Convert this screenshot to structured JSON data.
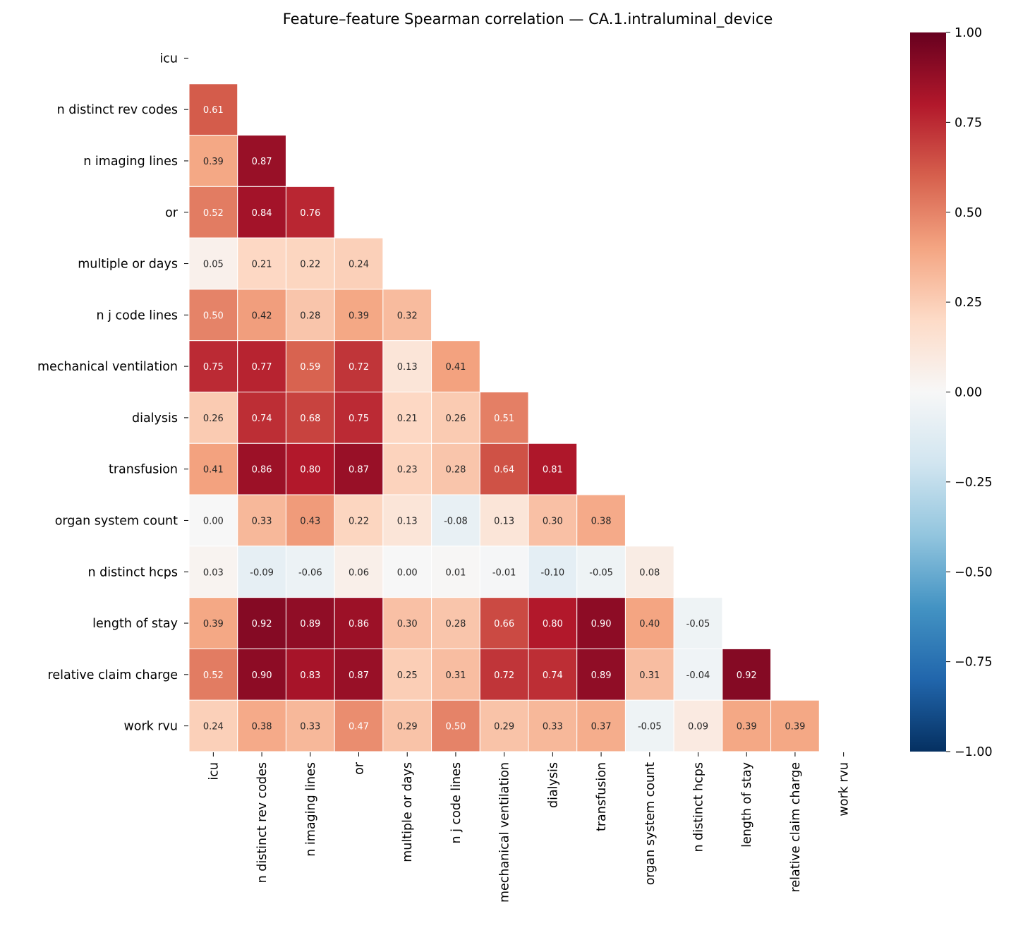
{
  "chart_data": {
    "type": "heatmap",
    "title": "Feature–feature Spearman correlation — CA.1.intraluminal_device",
    "labels": [
      "icu",
      "n distinct rev codes",
      "n imaging lines",
      "or",
      "multiple or days",
      "n j code lines",
      "mechanical ventilation",
      "dialysis",
      "transfusion",
      "organ system count",
      "n distinct hcps",
      "length of stay",
      "relative claim charge",
      "work rvu"
    ],
    "mask": "upper triangle including diagonal",
    "lower_triangle_rows": [
      [],
      [
        0.61
      ],
      [
        0.39,
        0.87
      ],
      [
        0.52,
        0.84,
        0.76
      ],
      [
        0.05,
        0.21,
        0.22,
        0.24
      ],
      [
        0.5,
        0.42,
        0.28,
        0.39,
        0.32
      ],
      [
        0.75,
        0.77,
        0.59,
        0.72,
        0.13,
        0.41
      ],
      [
        0.26,
        0.74,
        0.68,
        0.75,
        0.21,
        0.26,
        0.51
      ],
      [
        0.41,
        0.86,
        0.8,
        0.87,
        0.23,
        0.28,
        0.64,
        0.81
      ],
      [
        0.0,
        0.33,
        0.43,
        0.22,
        0.13,
        -0.08,
        0.13,
        0.3,
        0.38
      ],
      [
        0.03,
        -0.09,
        -0.06,
        0.06,
        0.0,
        0.01,
        -0.01,
        -0.1,
        -0.05,
        0.08
      ],
      [
        0.39,
        0.92,
        0.89,
        0.86,
        0.3,
        0.28,
        0.66,
        0.8,
        0.9,
        0.4,
        -0.05
      ],
      [
        0.52,
        0.9,
        0.83,
        0.87,
        0.25,
        0.31,
        0.72,
        0.74,
        0.89,
        0.31,
        -0.04,
        0.92
      ],
      [
        0.24,
        0.38,
        0.33,
        0.47,
        0.29,
        0.5,
        0.29,
        0.33,
        0.37,
        -0.05,
        0.09,
        0.39,
        0.39
      ]
    ],
    "colormap": "RdBu_r",
    "colormap_stops": [
      "#053061",
      "#2166ac",
      "#4393c3",
      "#92c5de",
      "#d1e5f0",
      "#f7f7f7",
      "#fddbc7",
      "#f4a582",
      "#d6604d",
      "#b2182b",
      "#67001f"
    ],
    "vmin": -1,
    "vmax": 1,
    "colorbar_ticks": [
      "1.00",
      "0.75",
      "0.50",
      "0.25",
      "0.00",
      "−0.25",
      "−0.50",
      "−0.75",
      "−1.00"
    ],
    "colorbar_tick_values": [
      1,
      0.75,
      0.5,
      0.25,
      0,
      -0.25,
      -0.5,
      -0.75,
      -1
    ],
    "annotation_format": "0.00"
  }
}
